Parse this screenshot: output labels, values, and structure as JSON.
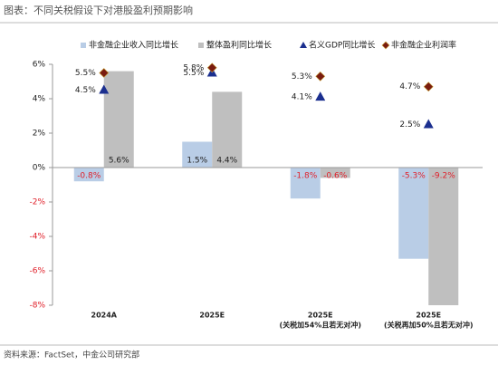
{
  "chart_data": {
    "type": "bar",
    "title": "图表：不同关税假设下对港股盈利预期影响",
    "source": "资料来源：FactSet，中金公司研究部",
    "categories": [
      "2024A",
      "2025E",
      "2025E",
      "2025E"
    ],
    "category_notes": [
      null,
      null,
      "(关税加54%且若无对冲)",
      "(关税再加50%且若无对冲)"
    ],
    "series": [
      {
        "name": "非金融企业收入同比增长",
        "type": "bar",
        "color": "#b9cde6",
        "values": [
          -0.8,
          1.5,
          -1.8,
          -5.3
        ],
        "value_labels": [
          "-0.8%",
          "1.5%",
          "-1.8%",
          "-5.3%"
        ]
      },
      {
        "name": "整体盈利同比增长",
        "type": "bar",
        "color": "#bfbfbf",
        "values": [
          5.6,
          4.4,
          -0.6,
          -9.2
        ],
        "value_labels": [
          "5.6%",
          "4.4%",
          "-0.6%",
          "-9.2%"
        ]
      },
      {
        "name": "名义GDP同比增长",
        "type": "scatter",
        "marker": "triangle",
        "color": "#1b2f8f",
        "values": [
          4.5,
          5.5,
          4.1,
          2.5
        ],
        "value_labels": [
          "4.5%",
          "5.5%",
          "4.1%",
          "2.5%"
        ]
      },
      {
        "name": "非金融企业利润率",
        "type": "scatter",
        "marker": "diamond",
        "color": "#7a1c10",
        "values": [
          5.5,
          5.8,
          5.3,
          4.7
        ],
        "value_labels": [
          "5.5%",
          "5.8%",
          "5.3%",
          "4.7%"
        ]
      }
    ],
    "ylim": [
      -8,
      6
    ],
    "yticks": [
      {
        "value": -8,
        "label": "-8%"
      },
      {
        "value": -6,
        "label": "-6%"
      },
      {
        "value": -4,
        "label": "-4%"
      },
      {
        "value": -2,
        "label": "-2%"
      },
      {
        "value": 0,
        "label": "0%"
      },
      {
        "value": 2,
        "label": "2%"
      },
      {
        "value": 4,
        "label": "4%"
      },
      {
        "value": 6,
        "label": "6%"
      }
    ],
    "legend": "top"
  }
}
